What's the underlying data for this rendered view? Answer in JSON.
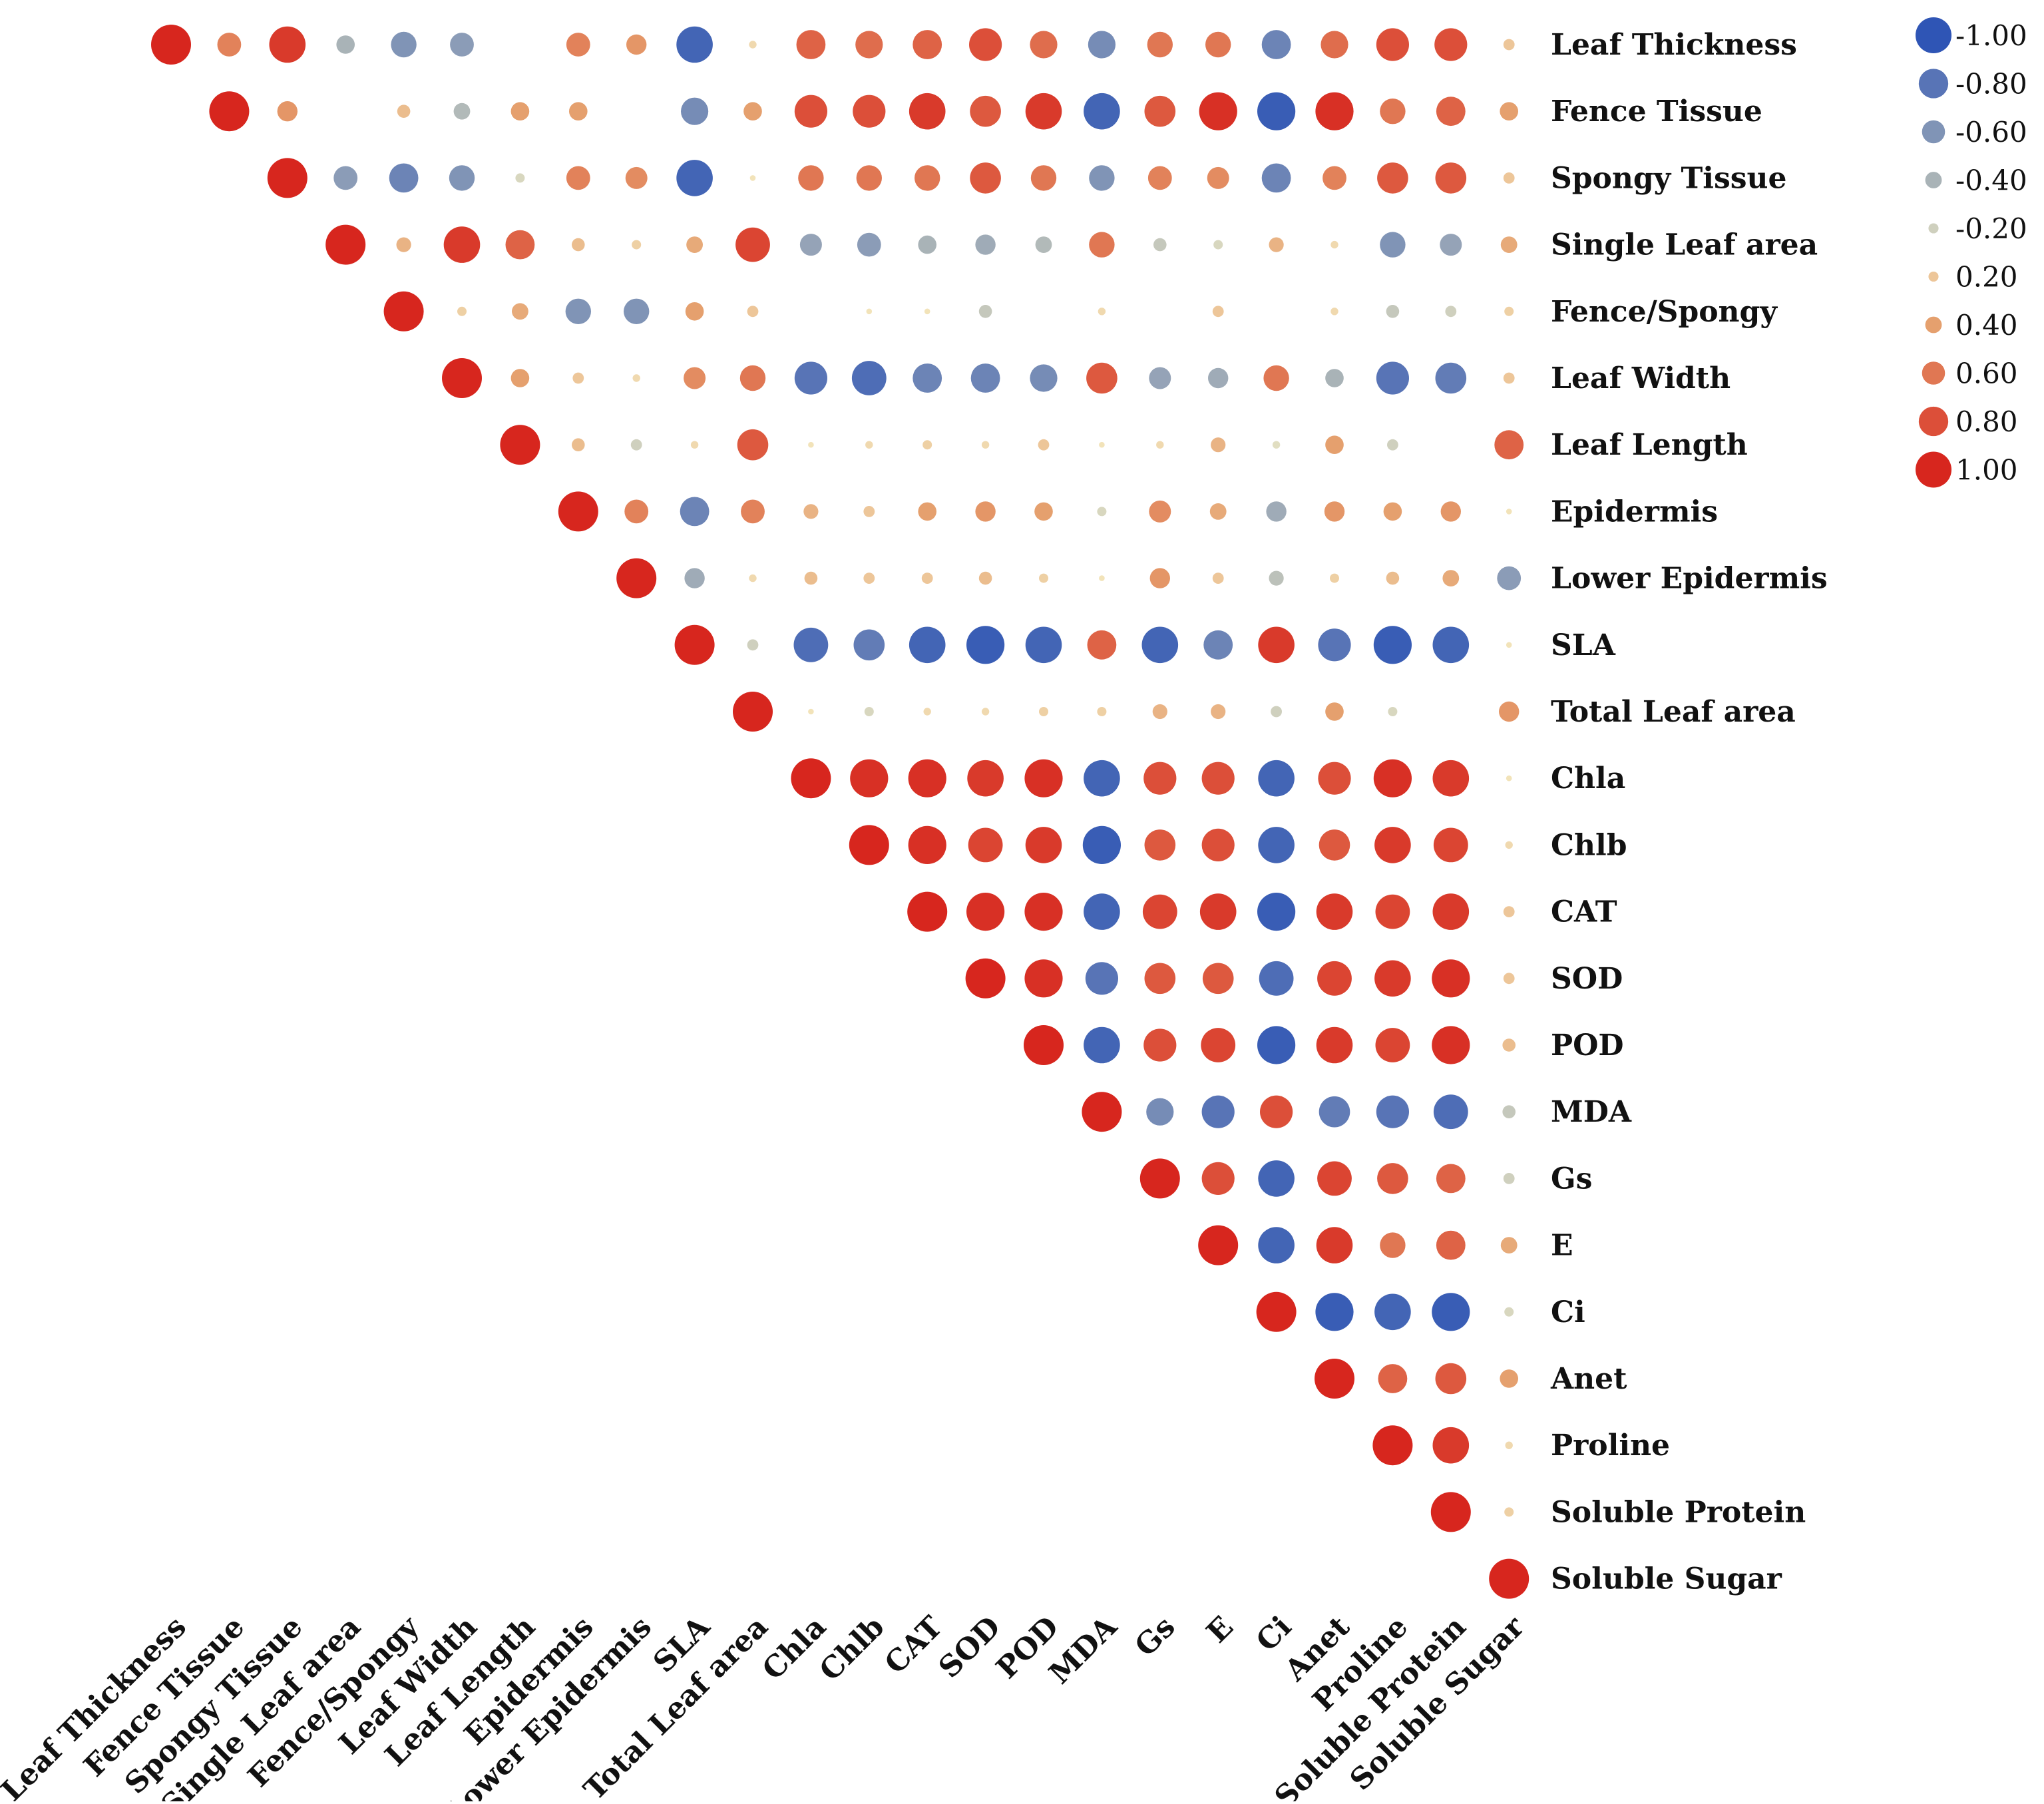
{
  "chart_data": {
    "type": "heatmap",
    "style": "upper-triangle correlation bubble matrix",
    "title": "",
    "variables": [
      "Leaf Thickness",
      "Fence Tissue",
      "Spongy Tissue",
      "Single Leaf area",
      "Fence/Spongy",
      "Leaf Width",
      "Leaf Length",
      "Epidermis",
      "Lower Epidermis",
      "SLA",
      "Total Leaf area",
      "Chla",
      "Chlb",
      "CAT",
      "SOD",
      "POD",
      "MDA",
      "Gs",
      "E",
      "Ci",
      "Anet",
      "Proline",
      "Soluble Protein",
      "Soluble Sugar"
    ],
    "value_range": [
      -1,
      1
    ],
    "legend": {
      "position": "top-right",
      "ticks": [
        -1.0,
        -0.8,
        -0.6,
        -0.4,
        -0.2,
        0.2,
        0.4,
        0.6,
        0.8,
        1.0
      ],
      "tick_labels": [
        "-1.00",
        "-0.80",
        "-0.60",
        "-0.40",
        "-0.20",
        "0.20",
        "0.40",
        "0.60",
        "0.80",
        "1.00"
      ]
    },
    "colors": {
      "negative": "#2f55b5",
      "neutral": "#f4ecc4",
      "positive": "#d7261e",
      "mid_negative": "#a9b3b7",
      "mid_positive": "#e5a06e"
    },
    "matrix": [
      [
        1.0,
        0.55,
        0.9,
        -0.4,
        -0.6,
        -0.55,
        null,
        0.55,
        0.45,
        -0.9,
        0.1,
        0.7,
        0.65,
        0.7,
        0.8,
        0.65,
        -0.65,
        0.6,
        0.6,
        -0.7,
        0.65,
        0.8,
        0.8,
        0.2
      ],
      [
        null,
        1.0,
        0.45,
        null,
        0.25,
        -0.35,
        0.4,
        0.4,
        null,
        -0.65,
        0.4,
        0.8,
        0.8,
        0.9,
        0.75,
        0.9,
        -0.9,
        0.75,
        0.95,
        -0.95,
        0.95,
        0.6,
        0.7,
        0.4
      ],
      [
        null,
        null,
        1.0,
        -0.55,
        -0.7,
        -0.6,
        -0.15,
        0.55,
        0.5,
        -0.9,
        0.05,
        0.6,
        0.6,
        0.6,
        0.75,
        0.6,
        -0.6,
        0.55,
        0.5,
        -0.7,
        0.55,
        0.75,
        0.75,
        0.2
      ],
      [
        null,
        null,
        null,
        1.0,
        0.3,
        0.9,
        0.7,
        0.25,
        0.15,
        0.35,
        0.85,
        -0.5,
        -0.55,
        -0.4,
        -0.45,
        -0.35,
        0.6,
        -0.25,
        -0.15,
        0.3,
        0.1,
        -0.6,
        -0.5,
        0.35
      ],
      [
        null,
        null,
        null,
        null,
        1.0,
        0.15,
        0.35,
        -0.6,
        -0.6,
        0.4,
        0.2,
        null,
        0.05,
        0.05,
        -0.25,
        null,
        0.1,
        null,
        0.2,
        null,
        0.1,
        -0.25,
        -0.2,
        0.15
      ],
      [
        null,
        null,
        null,
        null,
        null,
        1.0,
        0.4,
        0.2,
        0.1,
        0.5,
        0.6,
        -0.8,
        -0.85,
        -0.7,
        -0.7,
        -0.65,
        0.75,
        -0.5,
        -0.45,
        0.6,
        -0.4,
        -0.8,
        -0.75,
        0.2
      ],
      [
        null,
        null,
        null,
        null,
        null,
        null,
        1.0,
        0.25,
        -0.2,
        0.1,
        0.75,
        0.05,
        0.1,
        0.15,
        0.1,
        0.2,
        0.05,
        0.1,
        0.3,
        -0.1,
        0.4,
        -0.2,
        null,
        0.7
      ],
      [
        null,
        null,
        null,
        null,
        null,
        null,
        null,
        1.0,
        0.55,
        -0.7,
        0.55,
        0.3,
        0.2,
        0.4,
        0.45,
        0.4,
        -0.15,
        0.5,
        0.35,
        -0.45,
        0.45,
        0.4,
        0.45,
        0.05
      ],
      [
        null,
        null,
        null,
        null,
        null,
        null,
        null,
        null,
        1.0,
        -0.45,
        0.1,
        0.25,
        0.2,
        0.2,
        0.25,
        0.15,
        0.05,
        0.45,
        0.2,
        -0.3,
        0.15,
        0.25,
        0.35,
        -0.55
      ],
      [
        null,
        null,
        null,
        null,
        null,
        null,
        null,
        null,
        null,
        1.0,
        -0.2,
        -0.85,
        -0.75,
        -0.9,
        -0.95,
        -0.9,
        0.7,
        -0.9,
        -0.7,
        0.9,
        -0.8,
        -0.95,
        -0.9,
        0.05
      ],
      [
        null,
        null,
        null,
        null,
        null,
        null,
        null,
        null,
        null,
        null,
        1.0,
        0.05,
        -0.15,
        0.1,
        0.1,
        0.15,
        0.15,
        0.3,
        0.3,
        -0.2,
        0.4,
        -0.15,
        null,
        0.45
      ],
      [
        null,
        null,
        null,
        null,
        null,
        null,
        null,
        null,
        null,
        null,
        null,
        1.0,
        0.95,
        0.95,
        0.9,
        0.95,
        -0.9,
        0.8,
        0.8,
        -0.9,
        0.8,
        0.95,
        0.9,
        0.05
      ],
      [
        null,
        null,
        null,
        null,
        null,
        null,
        null,
        null,
        null,
        null,
        null,
        null,
        1.0,
        0.95,
        0.85,
        0.9,
        -0.95,
        0.75,
        0.8,
        -0.9,
        0.75,
        0.9,
        0.85,
        0.1
      ],
      [
        null,
        null,
        null,
        null,
        null,
        null,
        null,
        null,
        null,
        null,
        null,
        null,
        null,
        1.0,
        0.95,
        0.95,
        -0.9,
        0.85,
        0.9,
        -0.95,
        0.9,
        0.85,
        0.9,
        0.2
      ],
      [
        null,
        null,
        null,
        null,
        null,
        null,
        null,
        null,
        null,
        null,
        null,
        null,
        null,
        null,
        1.0,
        0.95,
        -0.8,
        0.75,
        0.75,
        -0.85,
        0.85,
        0.9,
        0.95,
        0.2
      ],
      [
        null,
        null,
        null,
        null,
        null,
        null,
        null,
        null,
        null,
        null,
        null,
        null,
        null,
        null,
        null,
        1.0,
        -0.9,
        0.8,
        0.85,
        -0.95,
        0.9,
        0.85,
        0.95,
        0.25
      ],
      [
        null,
        null,
        null,
        null,
        null,
        null,
        null,
        null,
        null,
        null,
        null,
        null,
        null,
        null,
        null,
        null,
        1.0,
        -0.65,
        -0.8,
        0.8,
        -0.75,
        -0.8,
        -0.85,
        -0.25
      ],
      [
        null,
        null,
        null,
        null,
        null,
        null,
        null,
        null,
        null,
        null,
        null,
        null,
        null,
        null,
        null,
        null,
        null,
        1.0,
        0.8,
        -0.9,
        0.85,
        0.75,
        0.7,
        -0.2
      ],
      [
        null,
        null,
        null,
        null,
        null,
        null,
        null,
        null,
        null,
        null,
        null,
        null,
        null,
        null,
        null,
        null,
        null,
        null,
        1.0,
        -0.9,
        0.9,
        0.6,
        0.7,
        0.35
      ],
      [
        null,
        null,
        null,
        null,
        null,
        null,
        null,
        null,
        null,
        null,
        null,
        null,
        null,
        null,
        null,
        null,
        null,
        null,
        null,
        1.0,
        -0.95,
        -0.9,
        -0.95,
        -0.15
      ],
      [
        null,
        null,
        null,
        null,
        null,
        null,
        null,
        null,
        null,
        null,
        null,
        null,
        null,
        null,
        null,
        null,
        null,
        null,
        null,
        null,
        1.0,
        0.7,
        0.75,
        0.4
      ],
      [
        null,
        null,
        null,
        null,
        null,
        null,
        null,
        null,
        null,
        null,
        null,
        null,
        null,
        null,
        null,
        null,
        null,
        null,
        null,
        null,
        null,
        1.0,
        0.9,
        0.1
      ],
      [
        null,
        null,
        null,
        null,
        null,
        null,
        null,
        null,
        null,
        null,
        null,
        null,
        null,
        null,
        null,
        null,
        null,
        null,
        null,
        null,
        null,
        null,
        1.0,
        0.15
      ],
      [
        null,
        null,
        null,
        null,
        null,
        null,
        null,
        null,
        null,
        null,
        null,
        null,
        null,
        null,
        null,
        null,
        null,
        null,
        null,
        null,
        null,
        null,
        null,
        1.0
      ]
    ]
  }
}
